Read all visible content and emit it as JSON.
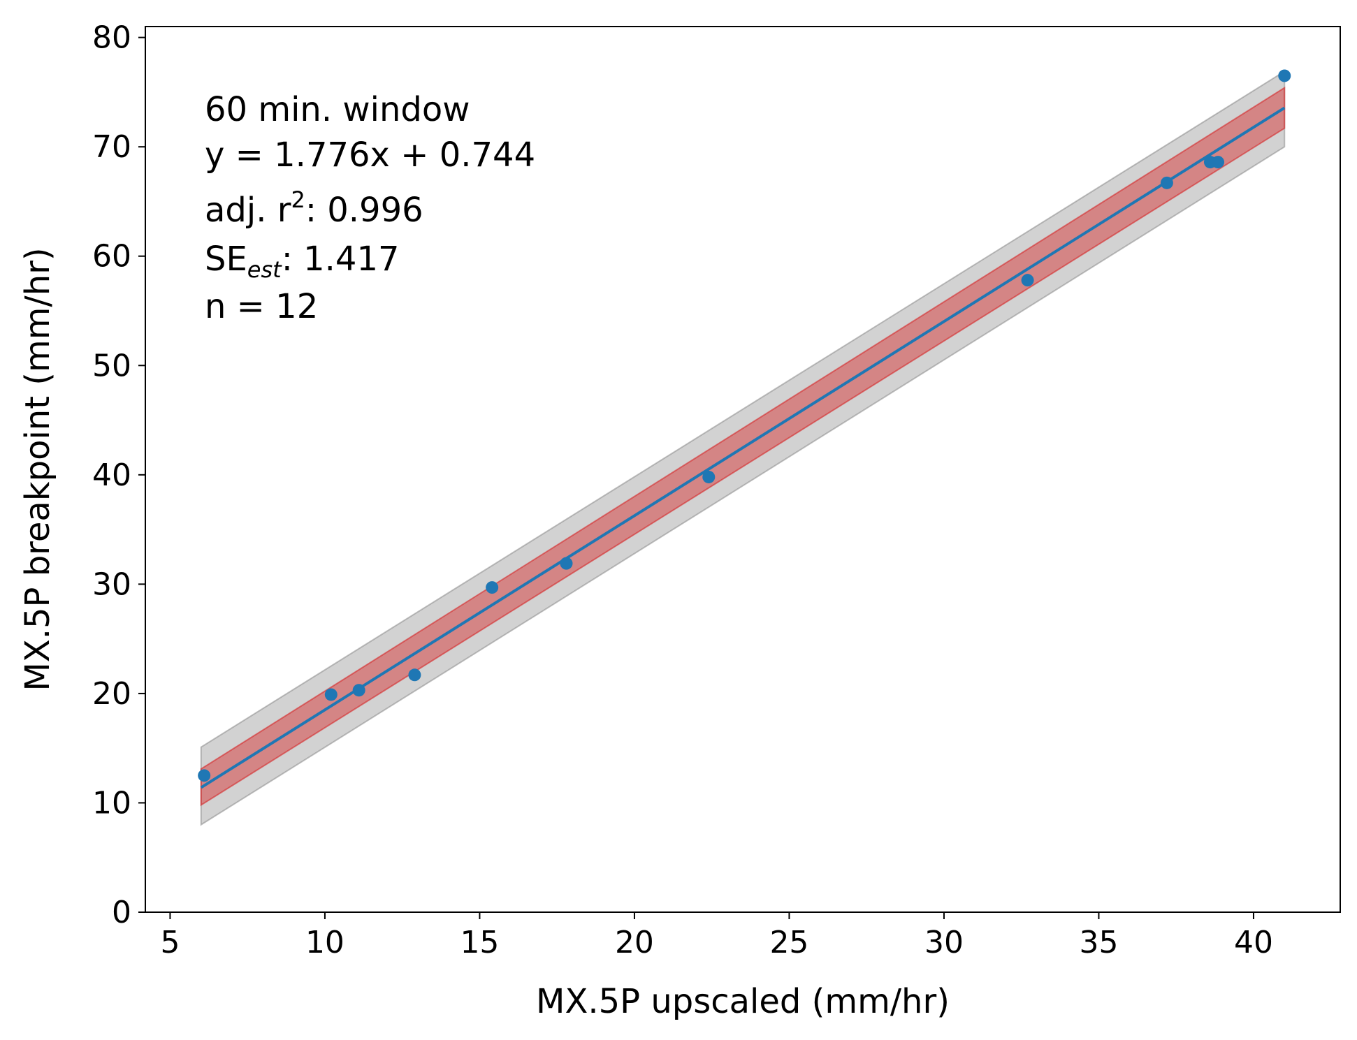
{
  "chart_data": {
    "type": "scatter",
    "xlabel": "MX.5P upscaled (mm/hr)",
    "ylabel": "MX.5P breakpoint (mm/hr)",
    "xlim": [
      4.2,
      42.8
    ],
    "ylim": [
      0,
      81
    ],
    "x_ticks": [
      "5",
      "10",
      "15",
      "20",
      "25",
      "30",
      "35",
      "40"
    ],
    "y_ticks": [
      "0",
      "10",
      "20",
      "30",
      "40",
      "50",
      "60",
      "70",
      "80"
    ],
    "grid": false,
    "points": [
      {
        "x": 6.1,
        "y": 12.5
      },
      {
        "x": 10.2,
        "y": 19.9
      },
      {
        "x": 11.1,
        "y": 20.3
      },
      {
        "x": 12.9,
        "y": 21.7
      },
      {
        "x": 15.4,
        "y": 29.7
      },
      {
        "x": 17.8,
        "y": 31.9
      },
      {
        "x": 22.4,
        "y": 39.8
      },
      {
        "x": 32.7,
        "y": 57.8
      },
      {
        "x": 37.2,
        "y": 66.7
      },
      {
        "x": 38.6,
        "y": 68.6
      },
      {
        "x": 38.85,
        "y": 68.6
      },
      {
        "x": 41.0,
        "y": 76.5
      }
    ],
    "fit": {
      "slope": 1.776,
      "intercept": 0.744,
      "x_range": [
        6.0,
        41.0
      ]
    },
    "confidence_band": {
      "x": [
        6.0,
        41.0
      ],
      "lower": [
        9.8,
        71.7
      ],
      "upper": [
        13.1,
        75.4
      ]
    },
    "prediction_band": {
      "x": [
        6.0,
        41.0
      ],
      "lower": [
        8.0,
        70.0
      ],
      "upper": [
        15.1,
        76.9
      ]
    },
    "colors": {
      "points": "#1f77b4",
      "fit_line": "#1f77b4",
      "confidence": "#d62728",
      "prediction": "#7f7f7f"
    },
    "annotation": {
      "title_line": "60 min. window",
      "equation": "y = 1.776x + 0.744",
      "r2_prefix": "adj. r",
      "r2_sup": "2",
      "r2_value": ": 0.996",
      "se_prefix": "SE",
      "se_sub": "est",
      "se_value": ": 1.417",
      "n_line": "n = 12"
    }
  }
}
